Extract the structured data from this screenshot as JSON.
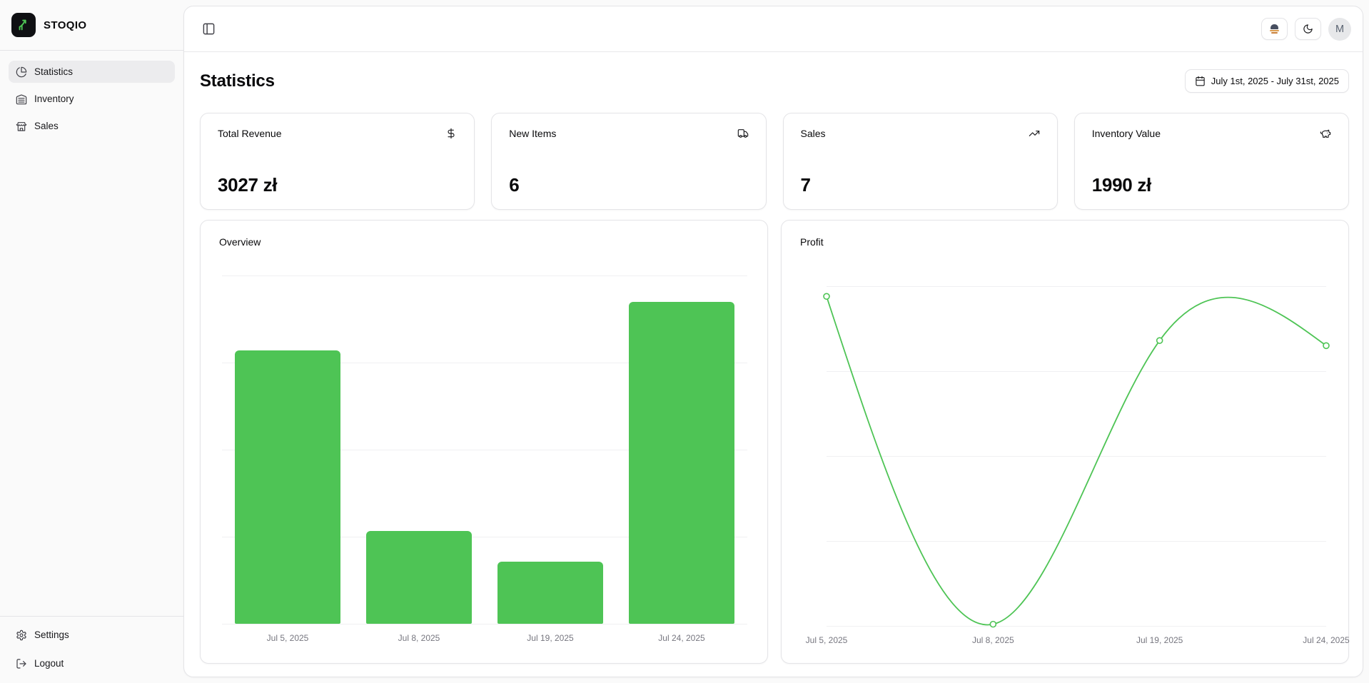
{
  "brand": {
    "name": "STOQIO"
  },
  "sidebar": {
    "items": [
      {
        "label": "Statistics",
        "icon": "pie-chart-icon",
        "active": true
      },
      {
        "label": "Inventory",
        "icon": "warehouse-icon",
        "active": false
      },
      {
        "label": "Sales",
        "icon": "store-icon",
        "active": false
      }
    ],
    "footer_items": [
      {
        "label": "Settings",
        "icon": "gear-icon"
      },
      {
        "label": "Logout",
        "icon": "logout-icon"
      }
    ]
  },
  "topbar": {
    "avatar_initial": "M"
  },
  "page": {
    "title": "Statistics",
    "date_range": "July 1st, 2025 - July 31st, 2025"
  },
  "stats": [
    {
      "label": "Total Revenue",
      "value": "3027 zł",
      "icon": "dollar-icon"
    },
    {
      "label": "New Items",
      "value": "6",
      "icon": "truck-icon"
    },
    {
      "label": "Sales",
      "value": "7",
      "icon": "trending-up-icon"
    },
    {
      "label": "Inventory Value",
      "value": "1990 zł",
      "icon": "piggy-bank-icon"
    }
  ],
  "chart_data": [
    {
      "type": "bar",
      "title": "Overview",
      "categories": [
        "Jul 5, 2025",
        "Jul 8, 2025",
        "Jul 19, 2025",
        "Jul 24, 2025"
      ],
      "values": [
        1570,
        533,
        357,
        1848
      ],
      "ylim": [
        0,
        2000
      ],
      "gridlines": 5,
      "grid": true,
      "y_axis_labels": false,
      "legend": "none",
      "color": "#4ec455",
      "xlabel": "",
      "ylabel": ""
    },
    {
      "type": "line",
      "title": "Profit",
      "categories": [
        "Jul 5, 2025",
        "Jul 8, 2025",
        "Jul 19, 2025",
        "Jul 24, 2025"
      ],
      "values": [
        970,
        5,
        840,
        825
      ],
      "ylim": [
        0,
        1000
      ],
      "gridlines": 5,
      "grid": true,
      "y_axis_labels": false,
      "legend": "none",
      "curve": "natural",
      "marker": "open-circle",
      "color": "#4ec455",
      "xlabel": "",
      "ylabel": ""
    }
  ],
  "colors": {
    "accent_green": "#4ec455",
    "page_bg": "#fafafa",
    "panel_bg": "#ffffff",
    "border": "#e4e4e7",
    "muted_text": "#76767f",
    "active_item_bg": "#ececee"
  }
}
